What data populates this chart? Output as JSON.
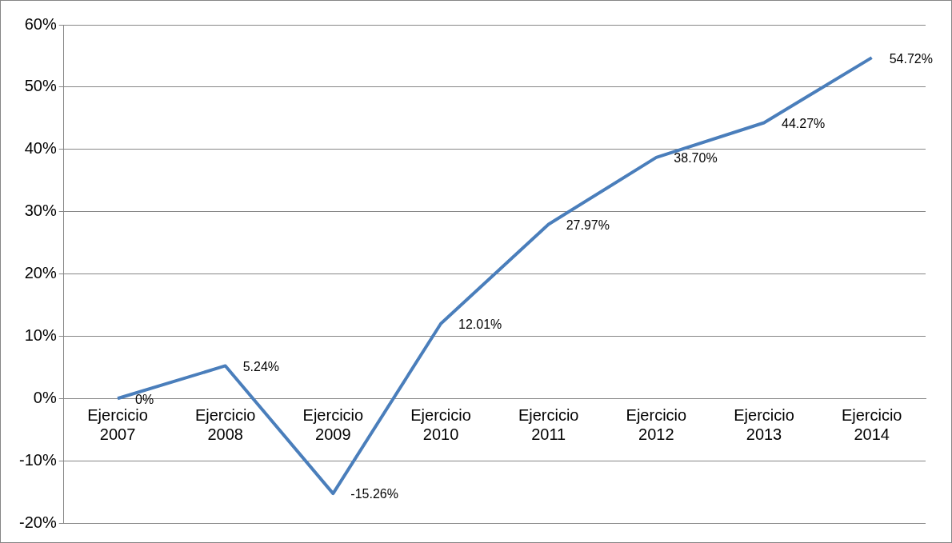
{
  "chart_data": {
    "type": "line",
    "categories": [
      "Ejercicio 2007",
      "Ejercicio 2008",
      "Ejercicio 2009",
      "Ejercicio 2010",
      "Ejercicio 2011",
      "Ejercicio 2012",
      "Ejercicio 2013",
      "Ejercicio 2014"
    ],
    "series": [
      {
        "color": "#4a7ebb",
        "values": [
          0,
          5.24,
          -15.26,
          12.01,
          27.97,
          38.7,
          44.27,
          54.72
        ],
        "value_labels": [
          "0%",
          "5.24%",
          "-15.26%",
          "12.01%",
          "27.97%",
          "38.70%",
          "44.27%",
          "54.72%"
        ]
      }
    ],
    "ylim": [
      -20,
      60
    ],
    "yticks": [
      {
        "value": -20,
        "label": "-20%"
      },
      {
        "value": -10,
        "label": "-10%"
      },
      {
        "value": 0,
        "label": "0%"
      },
      {
        "value": 10,
        "label": "10%"
      },
      {
        "value": 20,
        "label": "20%"
      },
      {
        "value": 30,
        "label": "30%"
      },
      {
        "value": 40,
        "label": "40%"
      },
      {
        "value": 50,
        "label": "50%"
      },
      {
        "value": 60,
        "label": "60%"
      }
    ],
    "grid": "y",
    "marker": "none",
    "line_style": "solid",
    "legend": false
  }
}
